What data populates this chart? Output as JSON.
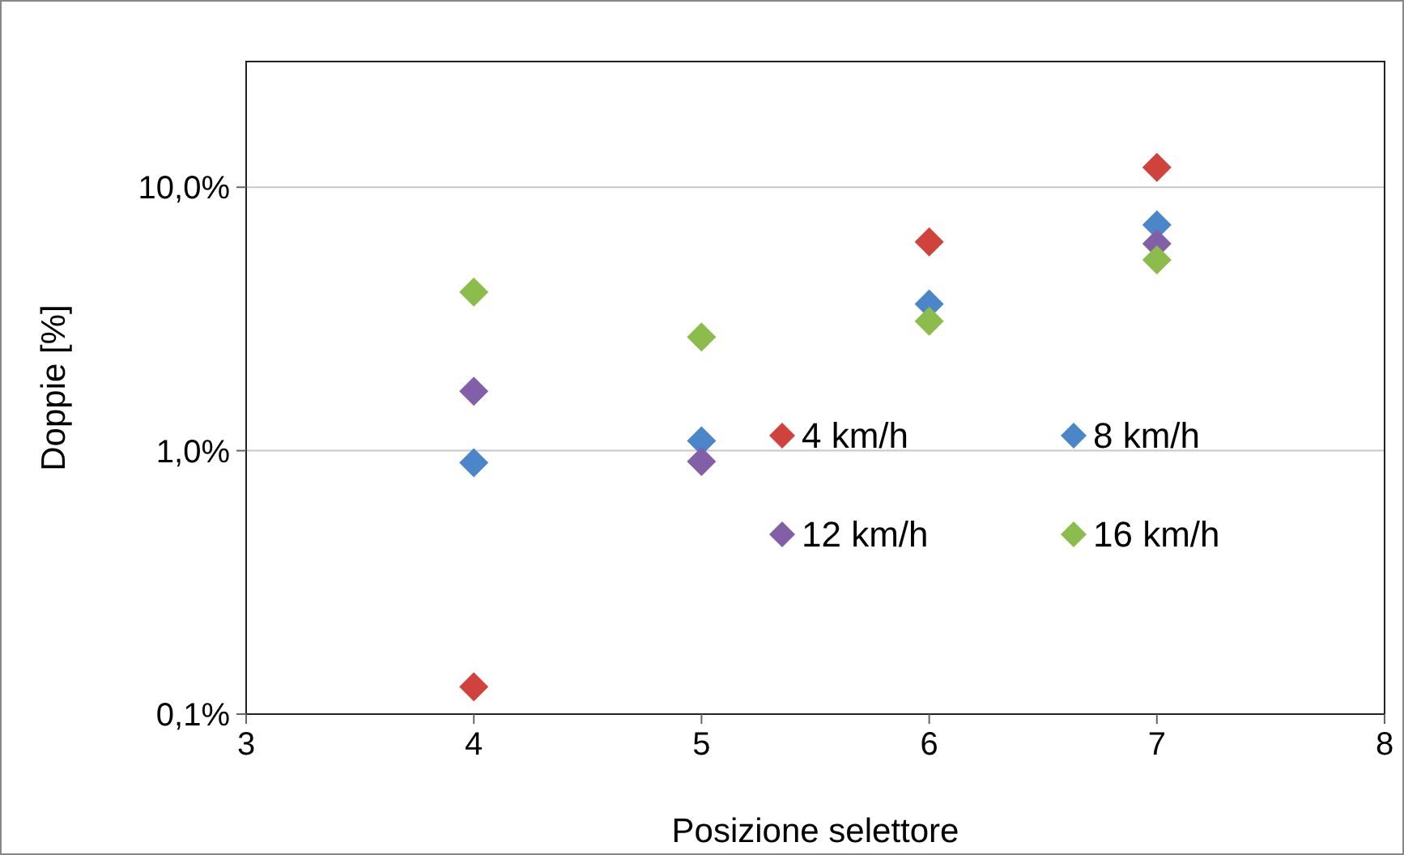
{
  "chart_data": {
    "type": "scatter",
    "xlabel": "Posizione selettore",
    "ylabel": "Doppie [%]",
    "log": "y",
    "xlim": [
      3,
      8
    ],
    "xticks": [
      3,
      4,
      5,
      6,
      7,
      8
    ],
    "ylim": [
      0.1,
      30
    ],
    "yticks": [
      {
        "value": 0.1,
        "label": "0,1%"
      },
      {
        "value": 1,
        "label": "1,0%"
      },
      {
        "value": 10,
        "label": "10,0%"
      }
    ],
    "grid": "y",
    "legend": "bottom right",
    "marker": "diamond",
    "x": [
      4,
      5,
      6,
      7
    ],
    "series": [
      {
        "name": "4 km/h",
        "color": "#d0433c",
        "values": [
          0.127,
          null,
          6.2,
          11.9
        ]
      },
      {
        "name": "8 km/h",
        "color": "#4a86c8",
        "values": [
          0.9,
          1.09,
          3.6,
          7.2
        ]
      },
      {
        "name": "12 km/h",
        "color": "#8160a8",
        "values": [
          1.68,
          0.91,
          null,
          6.1
        ]
      },
      {
        "name": "16 km/h",
        "color": "#8cbc4c",
        "values": [
          4.0,
          2.7,
          3.1,
          5.3
        ]
      }
    ]
  }
}
